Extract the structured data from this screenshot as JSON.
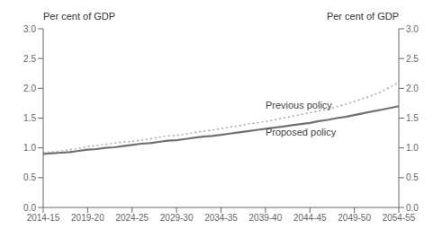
{
  "chart_data": {
    "type": "line",
    "ylabel": "Per cent of GDP",
    "y2label": "Per cent of GDP",
    "x": [
      2014.5,
      2015.5,
      2016.5,
      2017.5,
      2018.5,
      2019.5,
      2020.5,
      2021.5,
      2022.5,
      2023.5,
      2024.5,
      2025.5,
      2026.5,
      2027.5,
      2028.5,
      2029.5,
      2030.5,
      2031.5,
      2032.5,
      2033.5,
      2034.5,
      2035.5,
      2036.5,
      2037.5,
      2038.5,
      2039.5,
      2040.5,
      2041.5,
      2042.5,
      2043.5,
      2044.5,
      2045.5,
      2046.5,
      2047.5,
      2048.5,
      2049.5,
      2050.5,
      2051.5,
      2052.5,
      2053.5,
      2054.5
    ],
    "series": [
      {
        "color": "#707070",
        "line_style": "solid",
        "values": [
          0.9,
          0.91,
          0.92,
          0.93,
          0.95,
          0.97,
          0.98,
          1.0,
          1.01,
          1.03,
          1.05,
          1.07,
          1.08,
          1.1,
          1.12,
          1.13,
          1.15,
          1.17,
          1.19,
          1.2,
          1.22,
          1.24,
          1.26,
          1.28,
          1.3,
          1.32,
          1.34,
          1.36,
          1.38,
          1.4,
          1.42,
          1.45,
          1.47,
          1.5,
          1.52,
          1.55,
          1.58,
          1.61,
          1.64,
          1.67,
          1.7
        ]
      },
      {
        "color": "#aaaaaa",
        "line_style": "dotted",
        "values": [
          0.92,
          0.93,
          0.95,
          0.97,
          0.99,
          1.02,
          1.04,
          1.06,
          1.08,
          1.1,
          1.11,
          1.13,
          1.15,
          1.18,
          1.2,
          1.21,
          1.23,
          1.26,
          1.28,
          1.3,
          1.32,
          1.35,
          1.37,
          1.4,
          1.42,
          1.44,
          1.47,
          1.5,
          1.53,
          1.56,
          1.59,
          1.62,
          1.65,
          1.69,
          1.73,
          1.78,
          1.83,
          1.88,
          1.94,
          2.02,
          2.1
        ]
      }
    ],
    "xlim": [
      2014.5,
      2054.5
    ],
    "xticks": [
      {
        "value": 2014.5,
        "label": "2014-15"
      },
      {
        "value": 2019.5,
        "label": "2019-20"
      },
      {
        "value": 2024.5,
        "label": "2024-25"
      },
      {
        "value": 2029.5,
        "label": "2029-30"
      },
      {
        "value": 2034.5,
        "label": "2034-35"
      },
      {
        "value": 2039.5,
        "label": "2039-40"
      },
      {
        "value": 2044.5,
        "label": "2044-45"
      },
      {
        "value": 2049.5,
        "label": "2049-50"
      },
      {
        "value": 2054.5,
        "label": "2054-55"
      }
    ],
    "ylim": [
      0.0,
      3.0
    ],
    "yticks": [
      {
        "value": 0,
        "label": "0.0"
      },
      0.5,
      {
        "value": 1,
        "label": "1.0"
      },
      1.5,
      {
        "value": 2,
        "label": "2.0"
      },
      2.5,
      {
        "value": 3,
        "label": "3.0"
      }
    ],
    "y2lim": [
      0.0,
      3.0
    ],
    "y2ticks": [
      {
        "value": 0,
        "label": "0.0"
      },
      0.5,
      {
        "value": 1,
        "label": "1.0"
      },
      1.5,
      {
        "value": 2,
        "label": "2.0"
      },
      2.5,
      {
        "value": 3,
        "label": "3.0"
      }
    ],
    "annotations": [
      {
        "text": "Previous policy",
        "x": 2039.5,
        "y": 1.62
      },
      {
        "text": "Proposed policy",
        "x": 2039.5,
        "y": 1.37
      }
    ]
  }
}
